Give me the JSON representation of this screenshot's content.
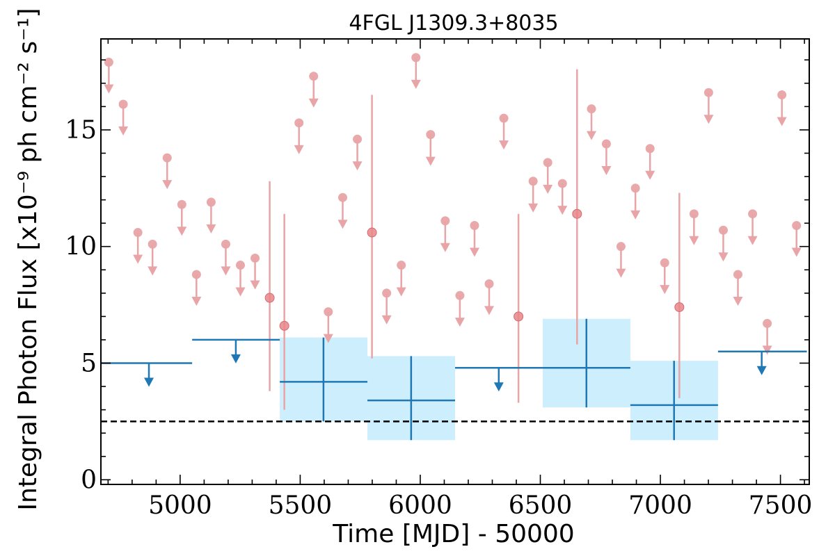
{
  "chart_data": {
    "type": "scatter",
    "title": "4FGL J1309.3+8035",
    "xlabel": "Time [MJD] - 50000",
    "ylabel": "Integral Photon Flux [x10⁻⁹ ph cm⁻² s⁻¹]",
    "xlim": [
      4670,
      7620
    ],
    "ylim": [
      -0.2,
      18.9
    ],
    "x_ticks": [
      5000,
      5500,
      6000,
      6500,
      7000,
      7500
    ],
    "x_tick_labels": [
      "5000",
      "5500",
      "6000",
      "6500",
      "7000",
      "7500"
    ],
    "y_ticks": [
      0,
      5,
      10,
      15
    ],
    "y_tick_labels": [
      "0",
      "5",
      "10",
      "15"
    ],
    "grid": false,
    "reference_line": {
      "y": 2.5,
      "style": "dashed",
      "color": "#000000"
    },
    "colors": {
      "fine_points": "#e8868a",
      "fine_upper_limits": "#e8a4a6",
      "coarse_bins": "#1f77b4",
      "coarse_band": "#cdeefd"
    },
    "series": [
      {
        "kind": "upper_limits",
        "points": [
          {
            "x": 4703,
            "y": 17.9
          },
          {
            "x": 4763,
            "y": 16.1
          },
          {
            "x": 4824,
            "y": 10.6
          },
          {
            "x": 4885,
            "y": 10.1
          },
          {
            "x": 4946,
            "y": 13.8
          },
          {
            "x": 5007,
            "y": 11.8
          },
          {
            "x": 5068,
            "y": 8.8
          },
          {
            "x": 5129,
            "y": 11.9
          },
          {
            "x": 5190,
            "y": 10.1
          },
          {
            "x": 5251,
            "y": 9.2
          },
          {
            "x": 5312,
            "y": 9.5
          },
          {
            "x": 5495,
            "y": 15.3
          },
          {
            "x": 5556,
            "y": 17.3
          },
          {
            "x": 5617,
            "y": 7.2
          },
          {
            "x": 5677,
            "y": 12.1
          },
          {
            "x": 5738,
            "y": 14.6
          },
          {
            "x": 5860,
            "y": 8.0
          },
          {
            "x": 5921,
            "y": 9.2
          },
          {
            "x": 5982,
            "y": 18.1
          },
          {
            "x": 6043,
            "y": 14.8
          },
          {
            "x": 6104,
            "y": 11.1
          },
          {
            "x": 6165,
            "y": 7.9
          },
          {
            "x": 6226,
            "y": 10.9
          },
          {
            "x": 6287,
            "y": 8.4
          },
          {
            "x": 6348,
            "y": 15.5
          },
          {
            "x": 6470,
            "y": 12.8
          },
          {
            "x": 6531,
            "y": 13.6
          },
          {
            "x": 6592,
            "y": 12.7
          },
          {
            "x": 6713,
            "y": 15.9
          },
          {
            "x": 6775,
            "y": 14.4
          },
          {
            "x": 6836,
            "y": 10.0
          },
          {
            "x": 6896,
            "y": 12.5
          },
          {
            "x": 6957,
            "y": 14.2
          },
          {
            "x": 7018,
            "y": 9.3
          },
          {
            "x": 7140,
            "y": 11.4
          },
          {
            "x": 7201,
            "y": 16.6
          },
          {
            "x": 7262,
            "y": 10.7
          },
          {
            "x": 7323,
            "y": 8.8
          },
          {
            "x": 7384,
            "y": 11.4
          },
          {
            "x": 7445,
            "y": 6.7
          },
          {
            "x": 7506,
            "y": 16.5
          },
          {
            "x": 7567,
            "y": 10.9
          }
        ]
      },
      {
        "kind": "detections",
        "points": [
          {
            "x": 5373,
            "y": 7.8,
            "ylo": 3.8,
            "yhi": 12.8
          },
          {
            "x": 5434,
            "y": 6.6,
            "ylo": 3.0,
            "yhi": 11.4
          },
          {
            "x": 5799,
            "y": 10.6,
            "ylo": 5.2,
            "yhi": 16.5
          },
          {
            "x": 6409,
            "y": 7.0,
            "ylo": 3.3,
            "yhi": 11.4
          },
          {
            "x": 6653,
            "y": 11.4,
            "ylo": 5.8,
            "yhi": 17.6
          },
          {
            "x": 7079,
            "y": 7.4,
            "ylo": 3.5,
            "yhi": 12.3
          }
        ]
      },
      {
        "kind": "coarse_bins",
        "bins": [
          {
            "x0": 4670,
            "x1": 5050,
            "y": 5.0,
            "upper_limit": true,
            "arrow_x": 4870
          },
          {
            "x0": 5050,
            "x1": 5415,
            "y": 6.0,
            "upper_limit": true,
            "arrow_x": 5232
          },
          {
            "x0": 5415,
            "x1": 5780,
            "y": 4.2,
            "ylo": 2.5,
            "yhi": 6.1,
            "band_lo": 2.5,
            "band_hi": 6.1,
            "xc": 5597
          },
          {
            "x0": 5780,
            "x1": 6145,
            "y": 3.4,
            "ylo": 1.7,
            "yhi": 5.3,
            "band_lo": 1.7,
            "band_hi": 5.3,
            "xc": 5962
          },
          {
            "x0": 6145,
            "x1": 6510,
            "y": 4.8,
            "upper_limit": true,
            "arrow_x": 6327
          },
          {
            "x0": 6510,
            "x1": 6875,
            "y": 4.8,
            "ylo": 3.1,
            "yhi": 6.9,
            "band_lo": 3.1,
            "band_hi": 6.9,
            "xc": 6692
          },
          {
            "x0": 6875,
            "x1": 7240,
            "y": 3.2,
            "ylo": 1.7,
            "yhi": 5.1,
            "band_lo": 1.7,
            "band_hi": 5.1,
            "xc": 7057
          },
          {
            "x0": 7240,
            "x1": 7610,
            "y": 5.5,
            "upper_limit": true,
            "arrow_x": 7422
          }
        ]
      }
    ]
  }
}
